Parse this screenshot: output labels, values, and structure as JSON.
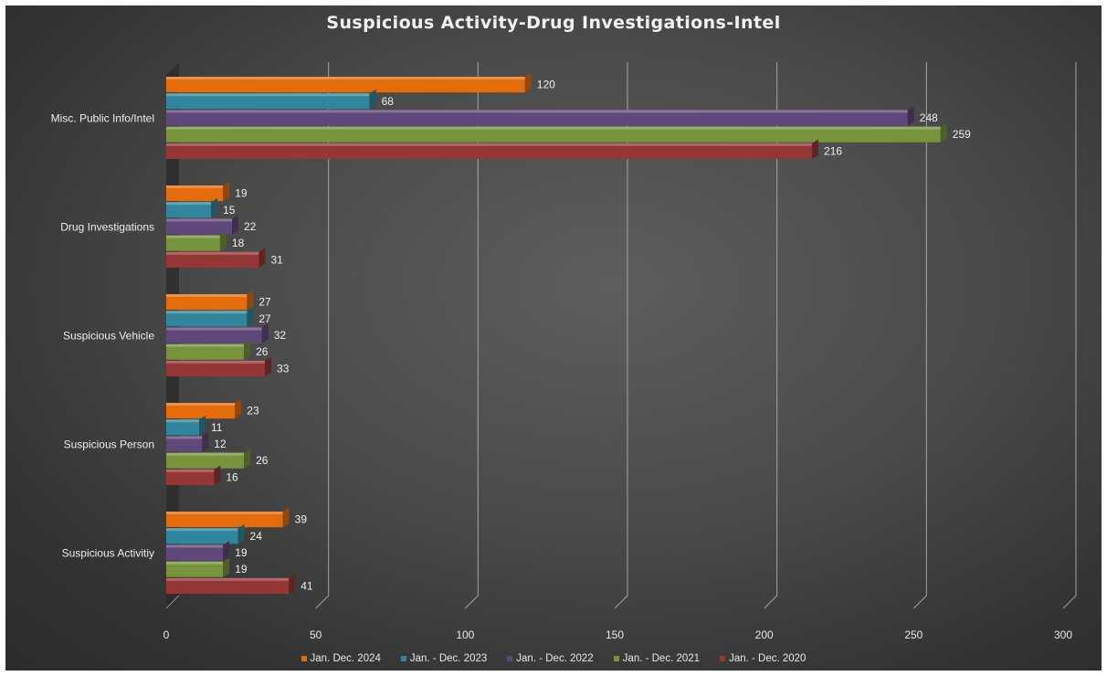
{
  "chart_data": {
    "type": "bar",
    "orientation": "horizontal",
    "style": "3d",
    "title": "Suspicious Activity-Drug Investigations-Intel",
    "categories": [
      "Misc. Public Info/Intel",
      "Drug Investigations",
      "Suspicious Vehicle",
      "Suspicious Person",
      "Suspicious Activitiy"
    ],
    "series": [
      {
        "name": "Jan. Dec. 2024",
        "color": "#e46c0a",
        "values": [
          120,
          19,
          27,
          23,
          39
        ]
      },
      {
        "name": "Jan. - Dec. 2023",
        "color": "#31859c",
        "values": [
          68,
          15,
          27,
          11,
          24
        ]
      },
      {
        "name": "Jan. - Dec. 2022",
        "color": "#60497a",
        "values": [
          248,
          22,
          32,
          12,
          19
        ]
      },
      {
        "name": "Jan. - Dec. 2021",
        "color": "#77933c",
        "values": [
          259,
          18,
          26,
          26,
          19
        ]
      },
      {
        "name": "Jan. - Dec. 2020",
        "color": "#953735",
        "values": [
          216,
          31,
          33,
          16,
          41
        ]
      }
    ],
    "xlim": [
      0,
      300
    ],
    "xticks": [
      "0",
      "50",
      "100",
      "150",
      "200",
      "250",
      "300"
    ],
    "grid": true,
    "data_labels": true,
    "legend": "bottom"
  }
}
